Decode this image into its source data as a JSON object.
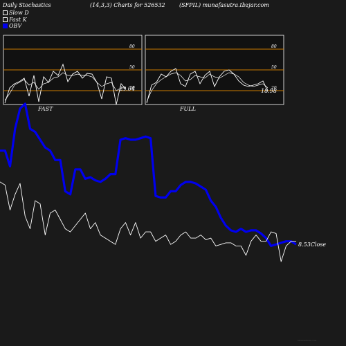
{
  "header": {
    "left": "Daily Stochastics",
    "center": "(14,3,3) Charts for 526532",
    "right": "(SFPIL) munafasutra.tbzjar.com"
  },
  "legend": [
    {
      "label": "Slow  D",
      "color": "#ffffff"
    },
    {
      "label": "Fast K",
      "color": "#ffffff"
    },
    {
      "label": "OBV",
      "color": "#0000ee"
    }
  ],
  "footer": "MunafaSutra.com",
  "chart_data": [
    {
      "type": "line",
      "title": "FAST",
      "ylim": [
        0,
        100
      ],
      "levels": [
        20,
        50,
        80
      ],
      "level_labels": [
        "20",
        "50",
        "80"
      ],
      "last_value_label": "23.04",
      "series": [
        {
          "name": "Fast K",
          "values": [
            2,
            24,
            30,
            33,
            38,
            12,
            42,
            4,
            40,
            32,
            48,
            42,
            58,
            33,
            44,
            48,
            38,
            45,
            44,
            32,
            8,
            40,
            38,
            0,
            30,
            22
          ]
        },
        {
          "name": "Slow D",
          "values": [
            6,
            16,
            28,
            32,
            36,
            28,
            32,
            22,
            30,
            32,
            38,
            40,
            46,
            42,
            42,
            44,
            42,
            42,
            40,
            32,
            26,
            30,
            32,
            20,
            24,
            24
          ]
        }
      ]
    },
    {
      "type": "line",
      "title": "FULL",
      "ylim": [
        0,
        100
      ],
      "levels": [
        20,
        50,
        80
      ],
      "level_labels": [
        "20",
        "50",
        "80"
      ],
      "last_value_label": "18.98",
      "series": [
        {
          "name": "Fast K",
          "values": [
            2,
            28,
            32,
            44,
            40,
            48,
            52,
            30,
            26,
            44,
            48,
            30,
            42,
            48,
            26,
            40,
            48,
            50,
            44,
            34,
            28,
            26,
            28,
            30,
            34,
            19
          ]
        },
        {
          "name": "Slow D",
          "values": [
            4,
            20,
            30,
            36,
            40,
            44,
            46,
            42,
            34,
            36,
            42,
            40,
            38,
            44,
            40,
            38,
            42,
            46,
            44,
            40,
            32,
            28,
            26,
            28,
            30,
            24
          ]
        }
      ]
    },
    {
      "type": "line",
      "close_label": "8.53",
      "series_label": "Close",
      "series": [
        {
          "name": "OBV",
          "values": [
            58,
            58,
            48,
            72,
            85,
            88,
            72,
            70,
            65,
            60,
            58,
            52,
            52,
            32,
            30,
            46,
            46,
            40,
            41,
            39,
            38,
            40,
            43,
            43,
            65,
            66,
            65,
            65,
            66,
            67,
            66,
            29,
            28,
            28,
            32,
            32,
            36,
            38,
            38,
            37,
            35,
            33,
            26,
            22,
            15,
            10,
            7,
            6,
            8,
            6,
            7,
            7,
            5,
            2,
            -3,
            -2,
            -1,
            0,
            0,
            -2
          ]
        },
        {
          "name": "Close",
          "values": [
            38,
            36,
            20,
            30,
            37,
            16,
            8,
            26,
            24,
            4,
            18,
            20,
            14,
            8,
            6,
            10,
            14,
            18,
            8,
            12,
            4,
            2,
            0,
            -2,
            8,
            12,
            4,
            12,
            2,
            6,
            6,
            0,
            2,
            4,
            -2,
            0,
            4,
            6,
            2,
            2,
            4,
            1,
            2,
            -3,
            -2,
            -1,
            -1,
            -3,
            -3,
            -9,
            0,
            4,
            0,
            0,
            6,
            5,
            -13,
            -3,
            0,
            0
          ]
        }
      ]
    }
  ]
}
